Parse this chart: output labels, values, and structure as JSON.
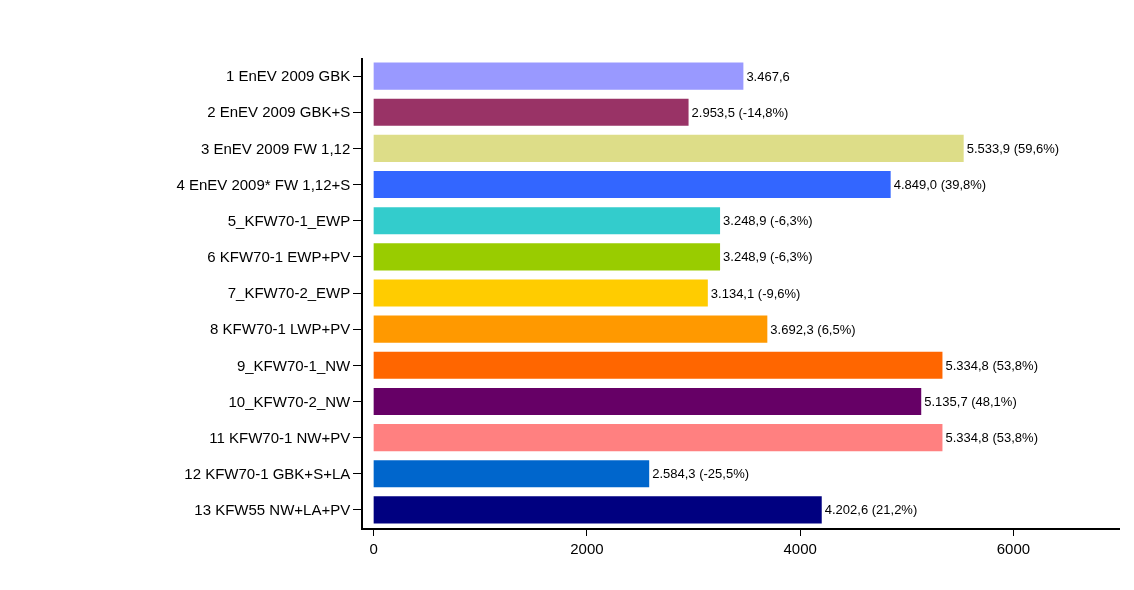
{
  "chart_data": {
    "type": "bar",
    "orientation": "horizontal",
    "categories": [
      "1 EnEV 2009 GBK",
      "2 EnEV 2009 GBK+S",
      "3 EnEV 2009 FW 1,12",
      "4 EnEV 2009* FW 1,12+S",
      "5_KFW70-1_EWP",
      "6 KFW70-1 EWP+PV",
      "7_KFW70-2_EWP",
      "8 KFW70-1 LWP+PV",
      "9_KFW70-1_NW",
      "10_KFW70-2_NW",
      "11 KFW70-1 NW+PV",
      "12 KFW70-1 GBK+S+LA",
      "13 KFW55 NW+LA+PV"
    ],
    "values": [
      3467.6,
      2953.5,
      5533.9,
      4849.0,
      3248.9,
      3248.9,
      3134.1,
      3692.3,
      5334.8,
      5135.7,
      5334.8,
      2584.3,
      4202.6
    ],
    "value_labels": [
      "3.467,6",
      "2.953,5 (-14,8%)",
      "5.533,9 (59,6%)",
      "4.849,0 (39,8%)",
      "3.248,9 (-6,3%)",
      "3.248,9 (-6,3%)",
      "3.134,1 (-9,6%)",
      "3.692,3 (6,5%)",
      "5.334,8 (53,8%)",
      "5.135,7 (48,1%)",
      "5.334,8 (53,8%)",
      "2.584,3 (-25,5%)",
      "4.202,6 (21,2%)"
    ],
    "colors": [
      "#9999ff",
      "#993366",
      "#dddd88",
      "#3366ff",
      "#33cccc",
      "#99cc00",
      "#ffcc00",
      "#ff9900",
      "#ff6600",
      "#660066",
      "#ff8080",
      "#0066cc",
      "#000080"
    ],
    "xlim": [
      -100,
      7000
    ],
    "xticks": [
      0,
      2000,
      4000,
      6000
    ],
    "legend": false
  }
}
